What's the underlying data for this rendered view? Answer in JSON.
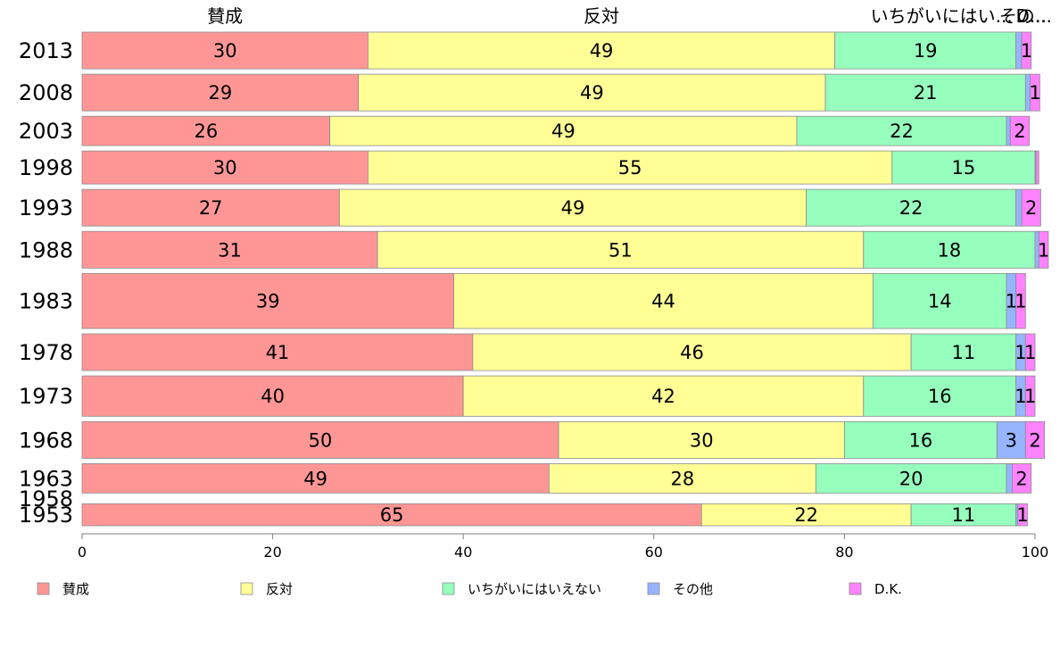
{
  "chart_data": {
    "type": "bar",
    "orientation": "horizontal",
    "stacked": true,
    "categories": [
      "2013",
      "2008",
      "2003",
      "1998",
      "1993",
      "1988",
      "1983",
      "1978",
      "1973",
      "1968",
      "1963",
      "1958",
      "1953"
    ],
    "column_headers": [
      "賛成",
      "反対",
      "いちがいにはいえない",
      "その他",
      "D.K."
    ],
    "header_display": [
      "賛成",
      "反対",
      "いちがいにはい...",
      "その...",
      "D..."
    ],
    "series": [
      {
        "name": "賛成",
        "color": "#ff9696",
        "values": [
          30,
          29,
          26,
          30,
          27,
          31,
          39,
          41,
          40,
          50,
          49,
          null,
          65
        ]
      },
      {
        "name": "反対",
        "color": "#ffff96",
        "values": [
          49,
          49,
          49,
          55,
          49,
          51,
          44,
          46,
          42,
          30,
          28,
          null,
          22
        ]
      },
      {
        "name": "いちがいにはいえない",
        "color": "#96ffbe",
        "values": [
          19,
          21,
          22,
          15,
          22,
          18,
          14,
          11,
          16,
          16,
          20,
          null,
          11
        ]
      },
      {
        "name": "その他",
        "color": "#96b4ff",
        "values": [
          0.6,
          0.5,
          0.4,
          0.1,
          0.6,
          0.4,
          1,
          1,
          1,
          3,
          0.6,
          null,
          0.2
        ]
      },
      {
        "name": "D.K.",
        "color": "#ff82ff",
        "values": [
          1,
          1,
          2,
          0.3,
          2,
          1,
          1,
          1,
          1,
          2,
          2,
          null,
          1
        ]
      }
    ],
    "xlim": [
      0,
      100
    ],
    "xticks": [
      0,
      20,
      40,
      60,
      80,
      100
    ],
    "bar_weights": [
      1,
      1,
      0.8,
      0.9,
      1,
      1,
      1.5,
      1,
      1.1,
      1,
      0.8,
      0,
      0.6
    ],
    "legend": "bottom",
    "grid": false
  }
}
